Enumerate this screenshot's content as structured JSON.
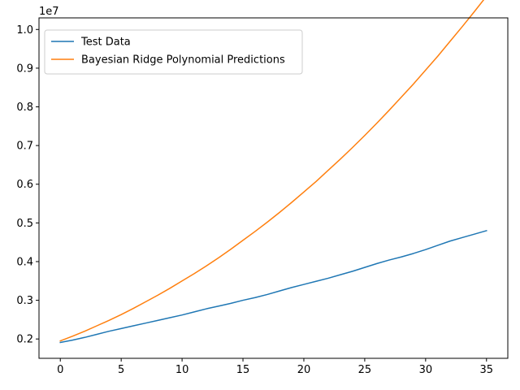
{
  "chart_data": {
    "type": "line",
    "title": "",
    "xlabel": "",
    "ylabel": "",
    "y_offset_label": "1e7",
    "xlim": [
      -1.75,
      36.75
    ],
    "ylim": [
      1.5,
      10.3
    ],
    "x_ticks": [
      0,
      5,
      10,
      15,
      20,
      25,
      30,
      35
    ],
    "x_tick_labels": [
      "0",
      "5",
      "10",
      "15",
      "20",
      "25",
      "30",
      "35"
    ],
    "y_ticks": [
      2,
      3,
      4,
      5,
      6,
      7,
      8,
      9,
      10
    ],
    "y_tick_labels": [
      "0.2",
      "0.3",
      "0.4",
      "0.5",
      "0.6",
      "0.7",
      "0.8",
      "0.9",
      "1.0"
    ],
    "grid": false,
    "legend_position": "top-left",
    "x": [
      0,
      1,
      2,
      3,
      4,
      5,
      6,
      7,
      8,
      9,
      10,
      11,
      12,
      13,
      14,
      15,
      16,
      17,
      18,
      19,
      20,
      21,
      22,
      23,
      24,
      25,
      26,
      27,
      28,
      29,
      30,
      31,
      32,
      33,
      34,
      35
    ],
    "series": [
      {
        "name": "Test Data",
        "color": "#1f77b4",
        "values": [
          1.91,
          1.97,
          2.04,
          2.12,
          2.2,
          2.27,
          2.34,
          2.41,
          2.48,
          2.55,
          2.62,
          2.7,
          2.78,
          2.85,
          2.92,
          3.0,
          3.07,
          3.15,
          3.24,
          3.33,
          3.41,
          3.49,
          3.57,
          3.66,
          3.75,
          3.85,
          3.95,
          4.04,
          4.12,
          4.21,
          4.31,
          4.42,
          4.53,
          4.62,
          4.71,
          4.8
        ]
      },
      {
        "name": "Bayesian Ridge Polynomial Predictions",
        "color": "#ff7f0e",
        "values": [
          1.95,
          2.07,
          2.2,
          2.34,
          2.48,
          2.63,
          2.79,
          2.96,
          3.13,
          3.31,
          3.5,
          3.69,
          3.89,
          4.1,
          4.32,
          4.55,
          4.78,
          5.02,
          5.27,
          5.53,
          5.8,
          6.07,
          6.36,
          6.65,
          6.95,
          7.26,
          7.58,
          7.91,
          8.25,
          8.59,
          8.95,
          9.31,
          9.69,
          10.07,
          10.46,
          10.86
        ]
      }
    ]
  }
}
